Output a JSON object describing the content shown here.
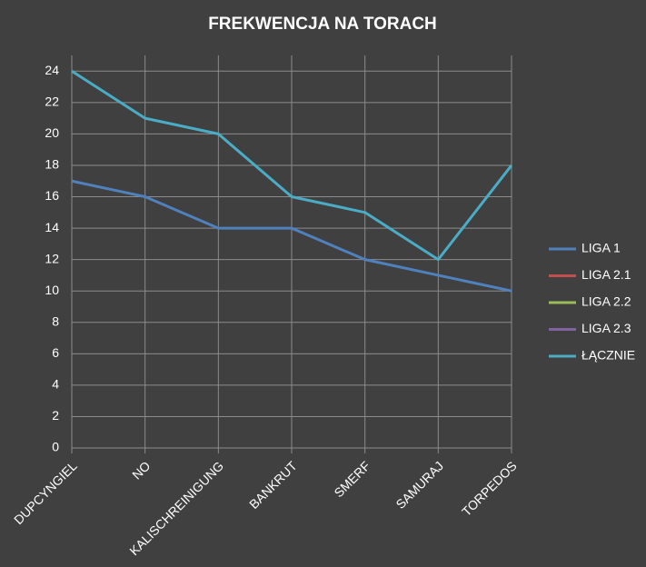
{
  "chart_data": {
    "type": "line",
    "title": "FREKWENCJA NA TORACH",
    "categories": [
      "DUPCYNGIEL",
      "NO",
      "KALISCHREINIGUNG",
      "BANKRUT",
      "SMERF",
      "SAMURAJ",
      "TORPEDOS"
    ],
    "series": [
      {
        "name": "LIGA 1",
        "color": "#4f81bd",
        "values": [
          17,
          16,
          14,
          14,
          12,
          11,
          10
        ]
      },
      {
        "name": "LIGA 2.1",
        "color": "#c0504d",
        "values": [
          null,
          null,
          null,
          null,
          null,
          null,
          null
        ]
      },
      {
        "name": "LIGA 2.2",
        "color": "#9bbb59",
        "values": [
          null,
          null,
          null,
          null,
          null,
          null,
          null
        ]
      },
      {
        "name": "LIGA 2.3",
        "color": "#8064a2",
        "values": [
          null,
          null,
          null,
          null,
          null,
          null,
          null
        ]
      },
      {
        "name": "ŁĄCZNIE",
        "color": "#4bacc6",
        "values": [
          24,
          21,
          20,
          16,
          15,
          12,
          18
        ]
      }
    ],
    "ylim": [
      0,
      25
    ],
    "yticks": [
      0,
      2,
      4,
      6,
      8,
      10,
      12,
      14,
      16,
      18,
      20,
      22,
      24
    ],
    "grid": true,
    "legend": "right"
  }
}
